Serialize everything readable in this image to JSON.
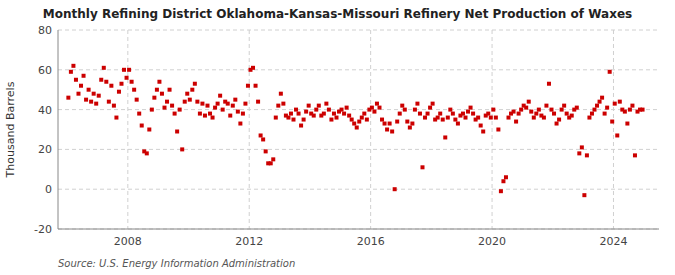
{
  "chart_data": {
    "type": "scatter",
    "title": "Monthly Refining District Oklahoma-Kansas-Missouri Refinery Net Production of Waxes",
    "y_label": "Thousand Barrels",
    "annotation": "Source: U.S. Energy Information Administration",
    "color": "#cc0000",
    "marker": "square",
    "grid": true,
    "xlim": [
      2005.7,
      2025.5
    ],
    "xticks": [
      2008,
      2012,
      2016,
      2020,
      2024
    ],
    "ylim": [
      -20,
      80
    ],
    "yticks": [
      -20,
      0,
      20,
      40,
      60,
      80
    ],
    "x": [
      2006.0416666666667,
      2006.125,
      2006.2083333333333,
      2006.2916666666667,
      2006.375,
      2006.4583333333333,
      2006.5416666666667,
      2006.625,
      2006.7083333333333,
      2006.7916666666667,
      2006.875,
      2006.9583333333333,
      2007.0416666666667,
      2007.125,
      2007.2083333333333,
      2007.2916666666667,
      2007.375,
      2007.4583333333333,
      2007.5416666666667,
      2007.625,
      2007.7083333333333,
      2007.7916666666667,
      2007.875,
      2007.9583333333333,
      2008.0416666666667,
      2008.125,
      2008.2083333333333,
      2008.2916666666667,
      2008.375,
      2008.4583333333333,
      2008.5416666666667,
      2008.625,
      2008.7083333333333,
      2008.7916666666667,
      2008.875,
      2008.9583333333333,
      2009.0416666666667,
      2009.125,
      2009.2083333333333,
      2009.2916666666667,
      2009.375,
      2009.4583333333333,
      2009.5416666666667,
      2009.625,
      2009.7083333333333,
      2009.7916666666667,
      2009.875,
      2009.9583333333333,
      2010.0416666666667,
      2010.125,
      2010.2083333333333,
      2010.2916666666667,
      2010.375,
      2010.4583333333333,
      2010.5416666666667,
      2010.625,
      2010.7083333333333,
      2010.7916666666667,
      2010.875,
      2010.9583333333333,
      2011.0416666666667,
      2011.125,
      2011.2083333333333,
      2011.2916666666667,
      2011.375,
      2011.4583333333333,
      2011.5416666666667,
      2011.625,
      2011.7083333333333,
      2011.7916666666667,
      2011.875,
      2011.9583333333333,
      2012.0416666666667,
      2012.125,
      2012.2083333333333,
      2012.2916666666667,
      2012.375,
      2012.4583333333333,
      2012.5416666666667,
      2012.625,
      2012.7083333333333,
      2012.7916666666667,
      2012.875,
      2012.9583333333333,
      2013.0416666666667,
      2013.125,
      2013.2083333333333,
      2013.2916666666667,
      2013.375,
      2013.4583333333333,
      2013.5416666666667,
      2013.625,
      2013.7083333333333,
      2013.7916666666667,
      2013.875,
      2013.9583333333333,
      2014.0416666666667,
      2014.125,
      2014.2083333333333,
      2014.2916666666667,
      2014.375,
      2014.4583333333333,
      2014.5416666666667,
      2014.625,
      2014.7083333333333,
      2014.7916666666667,
      2014.875,
      2014.9583333333333,
      2015.0416666666667,
      2015.125,
      2015.2083333333333,
      2015.2916666666667,
      2015.375,
      2015.4583333333333,
      2015.5416666666667,
      2015.625,
      2015.7083333333333,
      2015.7916666666667,
      2015.875,
      2015.9583333333333,
      2016.0416666666667,
      2016.125,
      2016.2083333333333,
      2016.2916666666667,
      2016.375,
      2016.4583333333333,
      2016.5416666666667,
      2016.625,
      2016.7083333333333,
      2016.7916666666667,
      2016.875,
      2016.9583333333333,
      2017.0416666666667,
      2017.125,
      2017.2083333333333,
      2017.2916666666667,
      2017.375,
      2017.4583333333333,
      2017.5416666666667,
      2017.625,
      2017.7083333333333,
      2017.7916666666667,
      2017.875,
      2017.9583333333333,
      2018.0416666666667,
      2018.125,
      2018.2083333333333,
      2018.2916666666667,
      2018.375,
      2018.4583333333333,
      2018.5416666666667,
      2018.625,
      2018.7083333333333,
      2018.7916666666667,
      2018.875,
      2018.9583333333333,
      2019.0416666666667,
      2019.125,
      2019.2083333333333,
      2019.2916666666667,
      2019.375,
      2019.4583333333333,
      2019.5416666666667,
      2019.625,
      2019.7083333333333,
      2019.7916666666667,
      2019.875,
      2019.9583333333333,
      2020.0416666666667,
      2020.125,
      2020.2083333333333,
      2020.2916666666667,
      2020.375,
      2020.4583333333333,
      2020.5416666666667,
      2020.625,
      2020.7083333333333,
      2020.7916666666667,
      2020.875,
      2020.9583333333333,
      2021.0416666666667,
      2021.125,
      2021.2083333333333,
      2021.2916666666667,
      2021.375,
      2021.4583333333333,
      2021.5416666666667,
      2021.625,
      2021.7083333333333,
      2021.7916666666667,
      2021.875,
      2021.9583333333333,
      2022.0416666666667,
      2022.125,
      2022.2083333333333,
      2022.2916666666667,
      2022.375,
      2022.4583333333333,
      2022.5416666666667,
      2022.625,
      2022.7083333333333,
      2022.7916666666667,
      2022.875,
      2022.9583333333333,
      2023.0416666666667,
      2023.125,
      2023.2083333333333,
      2023.2916666666667,
      2023.375,
      2023.4583333333333,
      2023.5416666666667,
      2023.625,
      2023.7083333333333,
      2023.7916666666667,
      2023.875,
      2023.9583333333333,
      2024.0416666666667,
      2024.125,
      2024.2083333333333,
      2024.2916666666667,
      2024.375,
      2024.4583333333333,
      2024.5416666666667,
      2024.625,
      2024.7083333333333,
      2024.7916666666667,
      2024.875,
      2024.9583333333333
    ],
    "values": [
      46,
      59,
      62,
      55,
      48,
      52,
      57,
      45,
      50,
      44,
      48,
      43,
      47,
      55,
      61,
      54,
      44,
      52,
      42,
      36,
      49,
      53,
      60,
      56,
      60,
      54,
      50,
      45,
      38,
      32,
      19,
      18,
      30,
      40,
      46,
      50,
      54,
      48,
      41,
      44,
      50,
      42,
      38,
      29,
      40,
      20,
      44,
      48,
      45,
      50,
      53,
      44,
      38,
      43,
      37,
      42,
      38,
      36,
      41,
      43,
      47,
      40,
      44,
      43,
      37,
      42,
      45,
      39,
      33,
      38,
      43,
      52,
      60,
      61,
      52,
      44,
      27,
      25,
      19,
      13,
      13,
      15,
      36,
      42,
      48,
      43,
      37,
      36,
      38,
      35,
      40,
      38,
      32,
      35,
      39,
      42,
      38,
      37,
      40,
      42,
      37,
      38,
      43,
      40,
      35,
      38,
      36,
      39,
      40,
      38,
      41,
      37,
      35,
      33,
      31,
      34,
      36,
      38,
      35,
      40,
      41,
      39,
      43,
      41,
      35,
      33,
      30,
      33,
      29,
      0,
      34,
      38,
      42,
      40,
      34,
      31,
      33,
      40,
      43,
      38,
      11,
      36,
      38,
      41,
      43,
      35,
      36,
      38,
      35,
      26,
      36,
      40,
      38,
      35,
      33,
      37,
      38,
      36,
      39,
      41,
      38,
      35,
      36,
      32,
      29,
      37,
      38,
      36,
      40,
      36,
      30,
      -1,
      4,
      6,
      36,
      38,
      39,
      34,
      38,
      40,
      42,
      41,
      44,
      39,
      36,
      38,
      40,
      37,
      36,
      42,
      53,
      40,
      38,
      33,
      35,
      40,
      42,
      38,
      36,
      37,
      40,
      41,
      18,
      21,
      -3,
      17,
      36,
      38,
      40,
      42,
      44,
      46,
      38,
      41,
      59,
      34,
      43,
      27,
      44,
      40,
      39,
      33,
      40,
      42,
      17,
      39,
      40,
      40
    ]
  }
}
